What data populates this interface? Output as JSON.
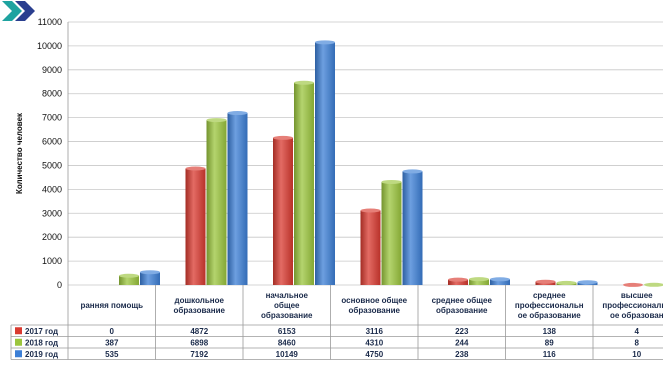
{
  "chart_data": {
    "type": "bar",
    "ylabel": "Количество человек",
    "ylim": [
      0,
      11000
    ],
    "yticks": [
      0,
      1000,
      2000,
      3000,
      4000,
      5000,
      6000,
      7000,
      8000,
      9000,
      10000,
      11000
    ],
    "grid": true,
    "legend": "table-bottom",
    "categories": [
      [
        "ранняя помощь"
      ],
      [
        "дошкольное",
        "образование"
      ],
      [
        "начальное",
        "общее",
        "образование"
      ],
      [
        "основное общее",
        "образование"
      ],
      [
        "среднее общее",
        "образование"
      ],
      [
        "среднее",
        "профессиональн",
        "ое образование"
      ],
      [
        "высшее",
        "профессиональн",
        "ое образован"
      ]
    ],
    "series": [
      {
        "name": "2017 год",
        "color": "#d93a30",
        "values": [
          0,
          4872,
          6153,
          3116,
          223,
          138,
          4
        ]
      },
      {
        "name": "2018 год",
        "color": "#9bc53d",
        "values": [
          387,
          6898,
          8460,
          4310,
          244,
          89,
          8
        ]
      },
      {
        "name": "2019 год",
        "color": "#3c7fd6",
        "values": [
          535,
          7192,
          10149,
          4750,
          238,
          116,
          10
        ]
      }
    ]
  },
  "logo": {
    "name": "chevron-logo-icon",
    "colors": [
      "#1fa3a0",
      "#2a3f8f"
    ]
  }
}
